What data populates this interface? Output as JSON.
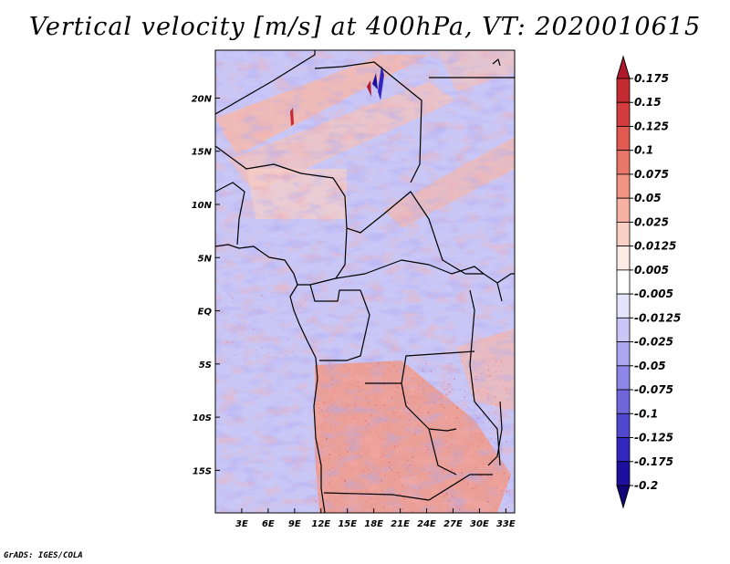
{
  "title": "Vertical velocity [m/s] at 400hPa, VT: 2020010615",
  "credit": "GrADS: IGES/COLA",
  "chart_data": {
    "type": "heatmap",
    "title": "Vertical velocity [m/s] at 400hPa, VT: 2020010615",
    "variable": "Vertical velocity",
    "units": "m/s",
    "level": "400hPa",
    "valid_time": "2020010615",
    "xlim": [
      0,
      34
    ],
    "ylim": [
      -19,
      24.5
    ],
    "x_ticks": [
      3,
      6,
      9,
      12,
      15,
      18,
      21,
      24,
      27,
      30,
      33
    ],
    "x_tick_labels": [
      "3E",
      "6E",
      "9E",
      "12E",
      "15E",
      "18E",
      "21E",
      "24E",
      "27E",
      "30E",
      "33E"
    ],
    "y_ticks": [
      20,
      15,
      10,
      5,
      0,
      -5,
      -10,
      -15
    ],
    "y_tick_labels": [
      "20N",
      "15N",
      "10N",
      "5N",
      "EQ",
      "5S",
      "10S",
      "15S"
    ],
    "colorbar": {
      "labels": [
        "0.175",
        "0.15",
        "0.125",
        "0.1",
        "0.075",
        "0.05",
        "0.025",
        "0.0125",
        "0.005",
        "-0.005",
        "-0.0125",
        "-0.025",
        "-0.05",
        "-0.075",
        "-0.1",
        "-0.125",
        "-0.175",
        "-0.2"
      ],
      "colors": [
        "#b2182b",
        "#c42a32",
        "#d33d3d",
        "#e05a52",
        "#ea766a",
        "#f29483",
        "#f6b1a2",
        "#fad0c5",
        "#fdebe6",
        "#ffffff",
        "#e6e4fb",
        "#cbc6f5",
        "#aca6ee",
        "#8d86e6",
        "#6f66dc",
        "#5047cf",
        "#3226bd",
        "#1f0f9e",
        "#12057a"
      ]
    }
  }
}
